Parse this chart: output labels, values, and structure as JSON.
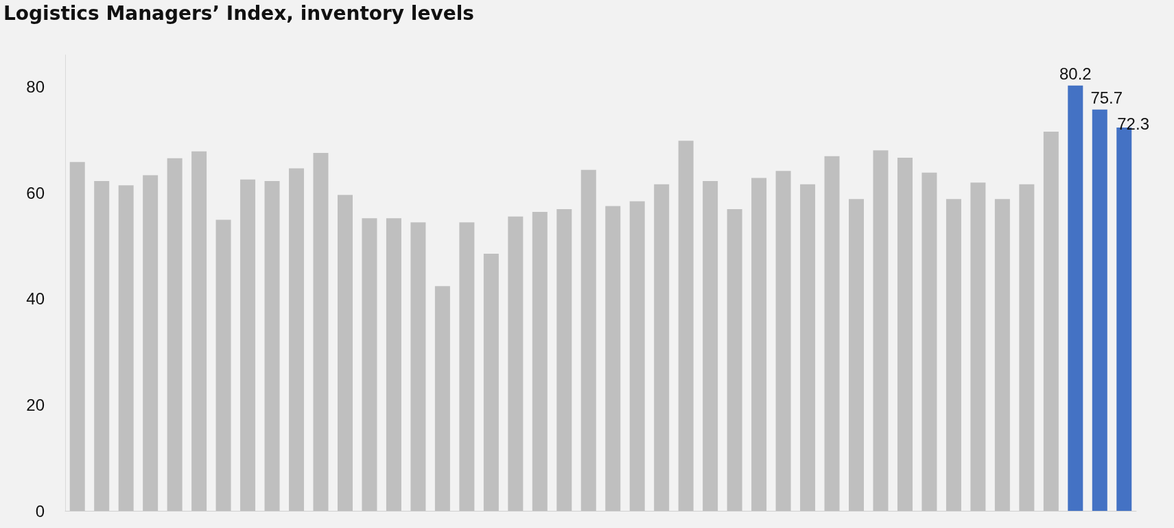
{
  "chart_data": {
    "type": "bar",
    "title": "Logistics Managers’ Index, inventory levels",
    "categories": [
      null,
      null,
      null,
      null,
      null,
      null,
      null,
      null,
      null,
      null,
      null,
      null,
      null,
      null,
      null,
      null,
      null,
      null,
      null,
      null,
      null,
      null,
      null,
      null,
      null,
      null,
      null,
      null,
      null,
      null,
      null,
      null,
      null,
      null,
      null,
      null,
      null,
      null,
      null,
      null,
      null,
      null,
      null,
      null
    ],
    "values": [
      65.8,
      62.2,
      61.4,
      63.3,
      66.5,
      67.8,
      54.9,
      62.5,
      62.2,
      64.6,
      67.5,
      59.6,
      55.2,
      55.2,
      54.4,
      42.4,
      54.4,
      48.5,
      55.5,
      56.4,
      56.9,
      64.3,
      57.5,
      58.4,
      61.6,
      69.8,
      62.2,
      56.9,
      62.8,
      64.1,
      61.6,
      66.9,
      58.8,
      68.0,
      66.6,
      63.8,
      58.8,
      61.9,
      58.8,
      61.6,
      71.5,
      80.2,
      75.7,
      72.3
    ],
    "colors": [
      "#bfbfbf",
      "#bfbfbf",
      "#bfbfbf",
      "#bfbfbf",
      "#bfbfbf",
      "#bfbfbf",
      "#bfbfbf",
      "#bfbfbf",
      "#bfbfbf",
      "#bfbfbf",
      "#bfbfbf",
      "#bfbfbf",
      "#bfbfbf",
      "#bfbfbf",
      "#bfbfbf",
      "#bfbfbf",
      "#bfbfbf",
      "#bfbfbf",
      "#bfbfbf",
      "#bfbfbf",
      "#bfbfbf",
      "#bfbfbf",
      "#bfbfbf",
      "#bfbfbf",
      "#bfbfbf",
      "#bfbfbf",
      "#bfbfbf",
      "#bfbfbf",
      "#bfbfbf",
      "#bfbfbf",
      "#bfbfbf",
      "#bfbfbf",
      "#bfbfbf",
      "#bfbfbf",
      "#bfbfbf",
      "#bfbfbf",
      "#bfbfbf",
      "#bfbfbf",
      "#bfbfbf",
      "#bfbfbf",
      "#bfbfbf",
      "#4472c4",
      "#4472c4",
      "#4472c4"
    ],
    "value_labels": [
      null,
      null,
      null,
      null,
      null,
      null,
      null,
      null,
      null,
      null,
      null,
      null,
      null,
      null,
      null,
      null,
      null,
      null,
      null,
      null,
      null,
      null,
      null,
      null,
      null,
      null,
      null,
      null,
      null,
      null,
      null,
      null,
      null,
      null,
      null,
      null,
      null,
      null,
      null,
      null,
      null,
      "80.2",
      "75.7",
      "72.3"
    ],
    "ylim": [
      0,
      86
    ],
    "yticks": [
      0,
      20,
      40,
      60,
      80
    ],
    "grid": false
  }
}
